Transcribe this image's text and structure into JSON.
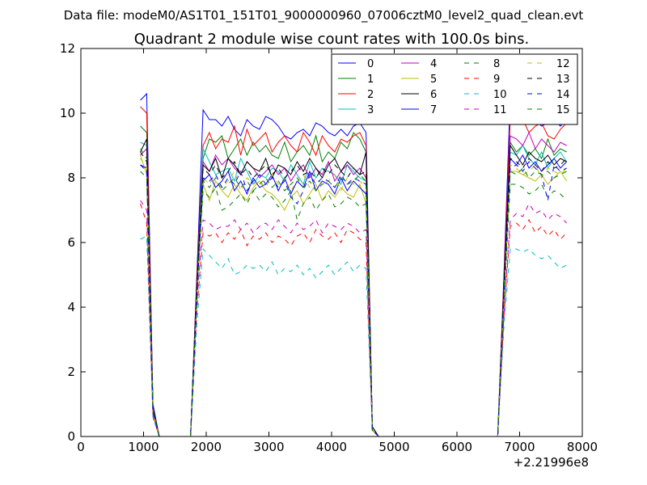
{
  "figure": {
    "suptitle": "Data file: modeM0/AS1T01_151T01_9000000960_07006cztM0_level2_quad_clean.evt"
  },
  "chart_data": {
    "type": "line",
    "title": "Quadrant 2 module wise count rates with 100.0s bins.",
    "xlabel": "",
    "ylabel": "",
    "x_offset_label": "+2.21996e8",
    "xlim": [
      0,
      8000
    ],
    "ylim": [
      0,
      12
    ],
    "x_ticks": [
      0,
      1000,
      2000,
      3000,
      4000,
      5000,
      6000,
      7000,
      8000
    ],
    "y_ticks": [
      0,
      2,
      4,
      6,
      8,
      10,
      12
    ],
    "grid": false,
    "legend": {
      "placement": "top-right",
      "columns": 4
    },
    "x": [
      950,
      1050,
      1150,
      1250,
      1350,
      1450,
      1550,
      1650,
      1750,
      1850,
      1950,
      2050,
      2150,
      2250,
      2350,
      2450,
      2550,
      2650,
      2750,
      2850,
      2950,
      3050,
      3150,
      3250,
      3350,
      3450,
      3550,
      3650,
      3750,
      3850,
      3950,
      4050,
      4150,
      4250,
      4350,
      4450,
      4550,
      4650,
      4750,
      4850,
      4950,
      5050,
      5150,
      5250,
      5350,
      5450,
      5550,
      5650,
      5750,
      5850,
      5950,
      6050,
      6150,
      6250,
      6350,
      6450,
      6550,
      6650,
      6750,
      6850,
      6950,
      7050,
      7150,
      7250,
      7350,
      7450,
      7550,
      7650,
      7750
    ],
    "series": [
      {
        "name": "0",
        "color": "#0000ff",
        "dash": "solid",
        "values": [
          10.4,
          10.6,
          1.0,
          0,
          0,
          0,
          0,
          0,
          0,
          5.0,
          10.1,
          9.8,
          9.8,
          9.6,
          9.9,
          9.5,
          9.3,
          9.8,
          9.6,
          9.5,
          9.9,
          9.8,
          9.6,
          9.3,
          9.2,
          9.4,
          9.5,
          9.3,
          9.7,
          9.6,
          9.4,
          9.3,
          9.5,
          9.3,
          9.6,
          9.7,
          9.4,
          0.3,
          0,
          0,
          0,
          0,
          0,
          0,
          0,
          0,
          0,
          0,
          0,
          0,
          0,
          0,
          0,
          0,
          0,
          0,
          0,
          0,
          5.0,
          10.5,
          10.1,
          9.7,
          10.0,
          9.8,
          9.6,
          9.7,
          9.8,
          9.6,
          9.8
        ]
      },
      {
        "name": "1",
        "color": "#008000",
        "dash": "solid",
        "values": [
          9.6,
          9.4,
          0.9,
          0,
          0,
          0,
          0,
          0,
          0,
          4.8,
          8.6,
          9.2,
          9.1,
          9.3,
          8.6,
          8.9,
          9.2,
          8.7,
          9.1,
          8.8,
          9.0,
          8.7,
          8.6,
          9.1,
          8.5,
          8.8,
          9.0,
          8.7,
          9.3,
          8.5,
          8.8,
          8.6,
          9.1,
          8.9,
          9.4,
          9.2,
          8.8,
          0.3,
          0,
          0,
          0,
          0,
          0,
          0,
          0,
          0,
          0,
          0,
          0,
          0,
          0,
          0,
          0,
          0,
          0,
          0,
          0,
          0,
          4.8,
          9.1,
          8.8,
          9.0,
          8.7,
          8.9,
          8.6,
          9.2,
          8.7,
          8.9,
          8.8
        ]
      },
      {
        "name": "2",
        "color": "#ff0000",
        "dash": "solid",
        "values": [
          10.2,
          10.0,
          0.9,
          0,
          0,
          0,
          0,
          0,
          0,
          4.9,
          9.0,
          9.4,
          8.9,
          9.2,
          9.1,
          9.6,
          8.7,
          9.5,
          9.0,
          9.2,
          9.4,
          8.8,
          9.1,
          9.3,
          9.0,
          8.8,
          9.4,
          9.1,
          8.7,
          9.3,
          9.0,
          8.8,
          9.2,
          9.1,
          9.3,
          9.4,
          9.0,
          0.3,
          0,
          0,
          0,
          0,
          0,
          0,
          0,
          0,
          0,
          0,
          0,
          0,
          0,
          0,
          0,
          0,
          0,
          0,
          0,
          0,
          4.9,
          9.8,
          9.9,
          9.8,
          9.4,
          9.6,
          9.7,
          9.3,
          9.2,
          9.5,
          9.7
        ]
      },
      {
        "name": "3",
        "color": "#00bfbf",
        "dash": "solid",
        "values": [
          9.1,
          9.0,
          0.8,
          0,
          0,
          0,
          0,
          0,
          0,
          4.6,
          8.9,
          8.5,
          8.1,
          8.2,
          8.3,
          7.9,
          8.6,
          8.2,
          7.8,
          8.1,
          8.0,
          8.3,
          8.2,
          7.9,
          8.4,
          8.1,
          7.8,
          8.5,
          8.0,
          8.3,
          8.2,
          8.1,
          7.8,
          8.4,
          8.2,
          8.0,
          7.9,
          0.3,
          0,
          0,
          0,
          0,
          0,
          0,
          0,
          0,
          0,
          0,
          0,
          0,
          0,
          0,
          0,
          0,
          0,
          0,
          0,
          0,
          4.5,
          8.8,
          8.7,
          9.0,
          8.6,
          8.4,
          8.8,
          8.3,
          8.6,
          8.8,
          8.5
        ]
      },
      {
        "name": "4",
        "color": "#bf00bf",
        "dash": "solid",
        "values": [
          8.7,
          8.9,
          0.8,
          0,
          0,
          0,
          0,
          0,
          0,
          4.6,
          8.5,
          8.2,
          8.7,
          8.4,
          8.6,
          8.3,
          8.1,
          8.5,
          8.3,
          8.0,
          8.2,
          8.4,
          8.1,
          8.3,
          7.9,
          8.2,
          8.4,
          8.0,
          8.3,
          8.1,
          8.5,
          7.9,
          8.2,
          8.4,
          8.1,
          8.3,
          8.0,
          0.3,
          0,
          0,
          0,
          0,
          0,
          0,
          0,
          0,
          0,
          0,
          0,
          0,
          0,
          0,
          0,
          0,
          0,
          0,
          0,
          0,
          4.6,
          9.3,
          9.2,
          9.0,
          9.4,
          8.9,
          9.2,
          9.0,
          8.8,
          9.1,
          9.0
        ]
      },
      {
        "name": "5",
        "color": "#bfbf00",
        "dash": "solid",
        "values": [
          8.7,
          8.1,
          0.7,
          0,
          0,
          0,
          0,
          0,
          0,
          4.5,
          7.8,
          7.3,
          7.9,
          7.6,
          7.4,
          7.8,
          7.5,
          7.3,
          7.7,
          7.9,
          7.6,
          7.5,
          7.3,
          7.0,
          7.4,
          7.6,
          7.2,
          7.5,
          7.8,
          7.3,
          7.6,
          7.4,
          7.7,
          7.5,
          7.4,
          7.8,
          7.2,
          0.2,
          0,
          0,
          0,
          0,
          0,
          0,
          0,
          0,
          0,
          0,
          0,
          0,
          0,
          0,
          0,
          0,
          0,
          0,
          0,
          0,
          4.2,
          8.2,
          8.2,
          8.1,
          8.0,
          7.9,
          8.1,
          7.8,
          8.0,
          8.2,
          7.9
        ]
      },
      {
        "name": "6",
        "color": "#000000",
        "dash": "solid",
        "values": [
          8.8,
          9.2,
          0.9,
          0,
          0,
          0,
          0,
          0,
          0,
          4.7,
          8.4,
          8.2,
          8.6,
          8.0,
          8.6,
          8.4,
          8.1,
          8.5,
          8.3,
          8.2,
          8.6,
          8.0,
          8.4,
          8.3,
          8.1,
          8.5,
          8.2,
          8.6,
          8.3,
          8.0,
          8.4,
          8.6,
          8.2,
          8.5,
          8.3,
          8.1,
          8.8,
          0.3,
          0,
          0,
          0,
          0,
          0,
          0,
          0,
          0,
          0,
          0,
          0,
          0,
          0,
          0,
          0,
          0,
          0,
          0,
          0,
          0,
          4.7,
          9.0,
          8.7,
          8.4,
          8.8,
          8.6,
          8.5,
          8.7,
          8.4,
          8.6,
          8.5
        ]
      },
      {
        "name": "7",
        "color": "#0000ff",
        "dash": "solid",
        "values": [
          8.4,
          8.3,
          0.8,
          0,
          0,
          0,
          0,
          0,
          0,
          4.5,
          7.9,
          8.1,
          7.7,
          7.9,
          8.2,
          7.6,
          7.9,
          7.5,
          8.0,
          7.7,
          7.8,
          8.1,
          7.6,
          8.0,
          7.5,
          7.9,
          7.7,
          8.2,
          7.6,
          7.9,
          7.8,
          7.5,
          8.0,
          7.6,
          7.9,
          7.7,
          7.5,
          0.2,
          0,
          0,
          0,
          0,
          0,
          0,
          0,
          0,
          0,
          0,
          0,
          0,
          0,
          0,
          0,
          0,
          0,
          0,
          0,
          0,
          4.4,
          8.6,
          8.4,
          8.7,
          8.3,
          8.5,
          8.2,
          8.4,
          8.6,
          8.3,
          8.5
        ]
      },
      {
        "name": "8",
        "color": "#008000",
        "dash": "dashed",
        "values": [
          8.9,
          8.6,
          0.8,
          0,
          0,
          0,
          0,
          0,
          0,
          4.4,
          7.6,
          7.4,
          7.7,
          7.0,
          7.1,
          7.3,
          7.5,
          7.2,
          7.6,
          7.3,
          7.5,
          7.4,
          7.1,
          7.3,
          7.6,
          6.7,
          7.2,
          7.4,
          7.0,
          7.3,
          7.5,
          7.1,
          7.2,
          7.4,
          7.3,
          7.1,
          7.2,
          0.2,
          0,
          0,
          0,
          0,
          0,
          0,
          0,
          0,
          0,
          0,
          0,
          0,
          0,
          0,
          0,
          0,
          0,
          0,
          0,
          0,
          4.1,
          7.8,
          7.8,
          7.7,
          7.5,
          7.6,
          7.8,
          7.4,
          7.6,
          7.5,
          7.3
        ]
      },
      {
        "name": "9",
        "color": "#ff0000",
        "dash": "dashed",
        "values": [
          7.2,
          6.6,
          0.6,
          0,
          0,
          0,
          0,
          0,
          0,
          3.9,
          6.3,
          6.2,
          6.3,
          6.0,
          6.3,
          6.1,
          6.4,
          5.9,
          6.2,
          6.1,
          6.3,
          6.0,
          6.2,
          6.1,
          5.9,
          6.2,
          6.3,
          6.0,
          6.4,
          6.2,
          6.1,
          6.3,
          6.0,
          6.4,
          6.3,
          6.1,
          6.0,
          0.2,
          0,
          0,
          0,
          0,
          0,
          0,
          0,
          0,
          0,
          0,
          0,
          0,
          0,
          0,
          0,
          0,
          0,
          0,
          0,
          0,
          3.7,
          6.5,
          6.6,
          6.4,
          6.7,
          6.3,
          6.5,
          6.2,
          6.4,
          6.1,
          6.3
        ]
      },
      {
        "name": "10",
        "color": "#00bfbf",
        "dash": "dashed",
        "values": [
          6.1,
          6.2,
          0.6,
          0,
          0,
          0,
          0,
          0,
          0,
          3.5,
          5.8,
          5.6,
          5.4,
          5.2,
          5.5,
          5.0,
          5.1,
          5.3,
          5.2,
          5.3,
          5.1,
          5.4,
          5.0,
          5.2,
          5.1,
          5.3,
          5.0,
          5.2,
          4.9,
          5.1,
          5.3,
          5.0,
          5.2,
          5.4,
          5.1,
          5.3,
          5.2,
          0.2,
          0,
          0,
          0,
          0,
          0,
          0,
          0,
          0,
          0,
          0,
          0,
          0,
          0,
          0,
          0,
          0,
          0,
          0,
          0,
          0,
          3.4,
          5.8,
          5.8,
          5.7,
          5.8,
          5.6,
          5.5,
          5.6,
          5.4,
          5.2,
          5.3
        ]
      },
      {
        "name": "11",
        "color": "#bf00bf",
        "dash": "dashed",
        "values": [
          7.3,
          7.0,
          0.7,
          0,
          0,
          0,
          0,
          0,
          0,
          4.1,
          6.7,
          6.6,
          6.4,
          6.5,
          6.5,
          6.7,
          6.4,
          6.6,
          6.3,
          6.5,
          6.6,
          6.4,
          6.7,
          6.5,
          6.3,
          6.6,
          6.4,
          6.5,
          6.7,
          6.3,
          6.6,
          6.5,
          6.4,
          6.6,
          6.5,
          6.3,
          6.4,
          0.2,
          0,
          0,
          0,
          0,
          0,
          0,
          0,
          0,
          0,
          0,
          0,
          0,
          0,
          0,
          0,
          0,
          0,
          0,
          0,
          0,
          3.8,
          6.7,
          6.9,
          6.8,
          7.2,
          6.9,
          7.0,
          6.7,
          6.9,
          6.8,
          6.6
        ]
      },
      {
        "name": "12",
        "color": "#bfbf00",
        "dash": "dashed",
        "values": [
          8.6,
          8.3,
          0.8,
          0,
          0,
          0,
          0,
          0,
          0,
          4.4,
          8.0,
          7.8,
          8.1,
          7.7,
          7.9,
          8.2,
          7.6,
          8.0,
          7.8,
          7.9,
          7.7,
          8.1,
          7.8,
          8.0,
          7.6,
          7.9,
          8.1,
          7.7,
          8.0,
          7.8,
          7.9,
          8.1,
          7.6,
          8.0,
          7.8,
          7.9,
          7.7,
          0.2,
          0,
          0,
          0,
          0,
          0,
          0,
          0,
          0,
          0,
          0,
          0,
          0,
          0,
          0,
          0,
          0,
          0,
          0,
          0,
          0,
          4.3,
          8.4,
          8.3,
          8.1,
          8.2,
          8.4,
          8.0,
          8.3,
          8.2,
          8.1,
          8.3
        ]
      },
      {
        "name": "13",
        "color": "#000000",
        "dash": "dashed",
        "values": [
          8.8,
          8.5,
          0.8,
          0,
          0,
          0,
          0,
          0,
          0,
          4.5,
          8.3,
          8.1,
          8.4,
          8.0,
          8.2,
          8.5,
          8.1,
          8.3,
          8.0,
          8.2,
          8.4,
          8.1,
          8.3,
          8.0,
          8.2,
          8.4,
          8.1,
          8.2,
          8.0,
          8.3,
          8.1,
          8.4,
          8.2,
          8.0,
          8.3,
          8.1,
          8.2,
          0.2,
          0,
          0,
          0,
          0,
          0,
          0,
          0,
          0,
          0,
          0,
          0,
          0,
          0,
          0,
          0,
          0,
          0,
          0,
          0,
          0,
          4.5,
          8.6,
          8.5,
          8.3,
          8.6,
          8.4,
          8.2,
          8.5,
          8.3,
          8.4,
          8.6
        ]
      },
      {
        "name": "14",
        "color": "#0000ff",
        "dash": "dashed",
        "values": [
          8.4,
          8.2,
          0.8,
          0,
          0,
          0,
          0,
          0,
          0,
          4.3,
          8.0,
          7.9,
          8.1,
          7.7,
          8.0,
          7.8,
          8.2,
          7.6,
          7.9,
          8.1,
          7.8,
          8.0,
          7.7,
          7.9,
          7.4,
          7.2,
          7.6,
          8.1,
          7.8,
          8.0,
          7.9,
          7.7,
          8.1,
          7.8,
          8.0,
          7.9,
          7.8,
          0.2,
          0,
          0,
          0,
          0,
          0,
          0,
          0,
          0,
          0,
          0,
          0,
          0,
          0,
          0,
          0,
          0,
          0,
          0,
          0,
          0,
          4.4,
          8.3,
          8.4,
          8.2,
          8.5,
          8.3,
          8.1,
          7.3,
          8.4,
          8.2,
          8.3
        ]
      },
      {
        "name": "15",
        "color": "#008000",
        "dash": "dashed",
        "values": [
          8.2,
          8.0,
          0.8,
          0,
          0,
          0,
          0,
          0,
          0,
          4.3,
          7.9,
          7.7,
          8.0,
          7.6,
          7.8,
          8.0,
          7.7,
          7.9,
          7.6,
          7.8,
          8.0,
          7.7,
          7.9,
          7.6,
          7.8,
          8.0,
          7.7,
          7.9,
          7.6,
          7.8,
          7.9,
          7.7,
          8.0,
          7.8,
          7.9,
          8.1,
          7.9,
          0.2,
          0,
          0,
          0,
          0,
          0,
          0,
          0,
          0,
          0,
          0,
          0,
          0,
          0,
          0,
          0,
          0,
          0,
          0,
          0,
          0,
          4.3,
          8.2,
          8.1,
          8.3,
          8.0,
          8.2,
          8.1,
          8.2,
          8.0,
          8.1,
          8.2
        ]
      }
    ]
  }
}
